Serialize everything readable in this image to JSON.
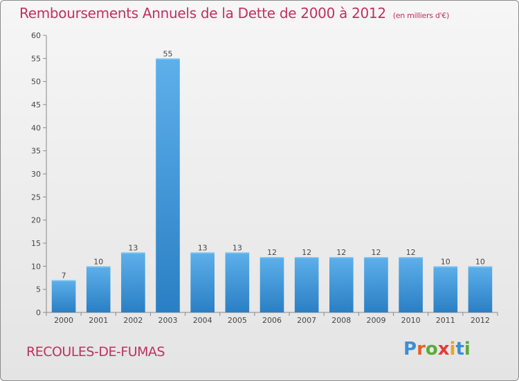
{
  "header": {
    "title": "Remboursements Annuels de la Dette de 2000 à 2012",
    "unit": "(en milliers d'€)"
  },
  "footer": {
    "commune": "RECOULES-DE-FUMAS",
    "logo_letters": [
      "P",
      "r",
      "o",
      "x",
      "i",
      "t",
      "i"
    ],
    "logo_colors": [
      "#3a8fd6",
      "#e2612b",
      "#5aab3a",
      "#e23b3b",
      "#f0a21f",
      "#3a8fd6",
      "#5aab3a"
    ]
  },
  "chart_data": {
    "type": "bar",
    "title": "Remboursements Annuels de la Dette de 2000 à 2012",
    "unit": "(en milliers d'€)",
    "categories": [
      "2000",
      "2001",
      "2002",
      "2003",
      "2004",
      "2005",
      "2006",
      "2007",
      "2008",
      "2009",
      "2010",
      "2011",
      "2012"
    ],
    "values": [
      7,
      10,
      13,
      55,
      13,
      13,
      12,
      12,
      12,
      12,
      12,
      10,
      10
    ],
    "ylim": [
      0,
      60
    ],
    "yticks": [
      0,
      5,
      10,
      15,
      20,
      25,
      30,
      35,
      40,
      45,
      50,
      55,
      60
    ],
    "grid": false,
    "bar_color": "#3a9be0"
  }
}
